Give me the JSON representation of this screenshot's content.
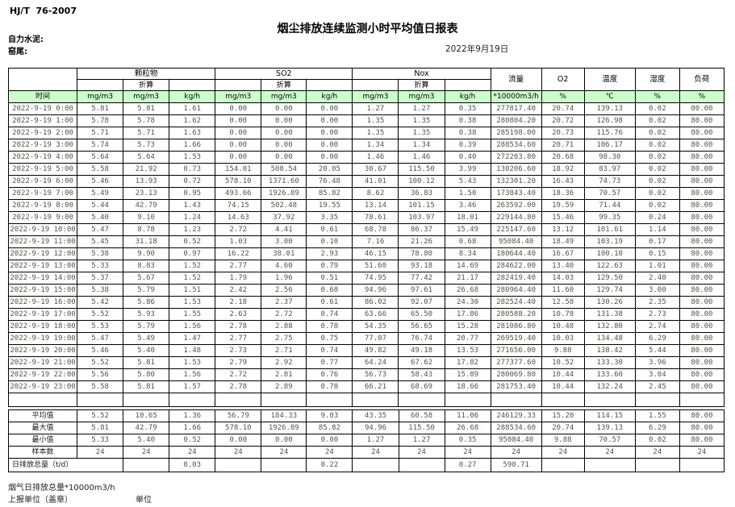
{
  "header": {
    "standard": "HJ/T  76-2007",
    "title": "烟尘排放连续监测小时平均值日报表",
    "company": "自力水泥:",
    "section": "窑尾:",
    "date": "2022年9月19日"
  },
  "colors": {
    "header_green": "#ccffcc",
    "border": "#000000",
    "data_text": "#57534c"
  },
  "table": {
    "groups": {
      "pm": "颗粒物",
      "so2": "SO2",
      "nox": "Nox",
      "conv": "折算"
    },
    "singles": {
      "flow": "流量",
      "o2": "O2",
      "temp": "温度",
      "humidity": "湿度",
      "load": "负荷"
    },
    "units": {
      "time": "时间",
      "mg": "mg/m3",
      "kgh": "kg/h",
      "flow": "*10000m3/h",
      "pct": "%",
      "temp": "℃"
    },
    "rows": [
      {
        "time": "2022-9-19 0:00",
        "values": [
          "5.81",
          "5.81",
          "1.61",
          "0.00",
          "0.00",
          "0.00",
          "1.27",
          "1.27",
          "0.35",
          "277817.40",
          "20.74",
          "139.13",
          "0.02",
          "80.00"
        ]
      },
      {
        "time": "2022-9-19 1:00",
        "values": [
          "5.78",
          "5.78",
          "1.62",
          "0.00",
          "0.00",
          "0.00",
          "1.35",
          "1.35",
          "0.38",
          "280804.20",
          "20.72",
          "126.98",
          "0.02",
          "80.00"
        ]
      },
      {
        "time": "2022-9-19 2:00",
        "values": [
          "5.71",
          "5.71",
          "1.63",
          "0.00",
          "0.00",
          "0.00",
          "1.35",
          "1.35",
          "0.38",
          "285198.00",
          "20.73",
          "115.76",
          "0.02",
          "80.00"
        ]
      },
      {
        "time": "2022-9-19 3:00",
        "values": [
          "5.74",
          "5.73",
          "1.66",
          "0.00",
          "0.00",
          "0.00",
          "1.34",
          "1.34",
          "0.39",
          "288534.60",
          "20.71",
          "106.17",
          "0.02",
          "80.00"
        ]
      },
      {
        "time": "2022-9-19 4:00",
        "values": [
          "5.64",
          "5.64",
          "1.53",
          "0.00",
          "0.00",
          "0.00",
          "1.46",
          "1.46",
          "0.40",
          "272203.80",
          "20.68",
          "98.30",
          "0.02",
          "80.00"
        ]
      },
      {
        "time": "2022-9-19 5:00",
        "values": [
          "5.58",
          "21.92",
          "0.73",
          "154.01",
          "508.54",
          "20.05",
          "30.67",
          "115.50",
          "3.99",
          "130206.60",
          "18.92",
          "83.97",
          "0.02",
          "80.00"
        ]
      },
      {
        "time": "2022-9-19 6:00",
        "values": [
          "5.46",
          "13.93",
          "0.72",
          "578.10",
          "1371.60",
          "76.48",
          "41.01",
          "100.12",
          "5.43",
          "132301.20",
          "16.43",
          "74.73",
          "0.02",
          "80.00"
        ]
      },
      {
        "time": "2022-9-19 7:00",
        "values": [
          "5.49",
          "23.13",
          "0.95",
          "493.66",
          "1926.89",
          "85.82",
          "8.62",
          "36.83",
          "1.50",
          "173843.40",
          "18.36",
          "70.57",
          "0.02",
          "80.00"
        ]
      },
      {
        "time": "2022-9-19 8:00",
        "values": [
          "5.44",
          "42.79",
          "1.43",
          "74.15",
          "502.48",
          "19.55",
          "13.14",
          "101.15",
          "3.46",
          "263592.00",
          "19.59",
          "71.44",
          "0.02",
          "80.00"
        ]
      },
      {
        "time": "2022-9-19 9:00",
        "values": [
          "5.40",
          "9.10",
          "1.24",
          "14.63",
          "37.92",
          "3.35",
          "78.61",
          "103.97",
          "18.01",
          "229144.80",
          "15.46",
          "99.35",
          "0.24",
          "80.00"
        ]
      },
      {
        "time": "2022-9-19 10:00",
        "values": [
          "5.47",
          "8.78",
          "1.23",
          "2.72",
          "4.41",
          "0.61",
          "68.78",
          "86.37",
          "15.49",
          "225147.60",
          "13.12",
          "101.61",
          "1.14",
          "80.00"
        ]
      },
      {
        "time": "2022-9-19 11:00",
        "values": [
          "5.45",
          "31.18",
          "0.52",
          "1.03",
          "3.00",
          "0.10",
          "7.16",
          "21.26",
          "0.68",
          "95084.40",
          "18.49",
          "103.19",
          "0.17",
          "80.00"
        ]
      },
      {
        "time": "2022-9-19 12:00",
        "values": [
          "5.38",
          "9.90",
          "0.97",
          "16.22",
          "38.01",
          "2.93",
          "46.15",
          "78.80",
          "8.34",
          "180644.40",
          "16.67",
          "100.10",
          "0.15",
          "80.00"
        ]
      },
      {
        "time": "2022-9-19 13:00",
        "values": [
          "5.33",
          "8.83",
          "1.52",
          "2.77",
          "4.60",
          "0.79",
          "51.60",
          "93.18",
          "14.69",
          "284622.00",
          "13.40",
          "122.63",
          "1.01",
          "80.00"
        ]
      },
      {
        "time": "2022-9-19 14:00",
        "values": [
          "5.37",
          "5.67",
          "1.52",
          "1.79",
          "1.96",
          "0.51",
          "74.95",
          "77.42",
          "21.17",
          "282419.40",
          "14.03",
          "129.50",
          "2.40",
          "80.00"
        ]
      },
      {
        "time": "2022-9-19 15:00",
        "values": [
          "5.38",
          "5.79",
          "1.51",
          "2.42",
          "2.56",
          "0.68",
          "94.96",
          "97.61",
          "26.68",
          "280964.40",
          "11.60",
          "129.74",
          "3.00",
          "80.00"
        ]
      },
      {
        "time": "2022-9-19 16:00",
        "values": [
          "5.42",
          "5.86",
          "1.53",
          "2.18",
          "2.37",
          "0.61",
          "86.02",
          "92.07",
          "24.30",
          "282524.40",
          "12.58",
          "130.26",
          "2.35",
          "80.00"
        ]
      },
      {
        "time": "2022-9-19 17:00",
        "values": [
          "5.52",
          "5.93",
          "1.55",
          "2.63",
          "2.72",
          "0.74",
          "63.66",
          "65.50",
          "17.86",
          "280588.20",
          "10.78",
          "131.38",
          "2.73",
          "80.00"
        ]
      },
      {
        "time": "2022-9-19 18:00",
        "values": [
          "5.53",
          "5.79",
          "1.56",
          "2.78",
          "2.88",
          "0.78",
          "54.35",
          "56.65",
          "15.28",
          "281086.80",
          "10.48",
          "132.80",
          "2.74",
          "80.00"
        ]
      },
      {
        "time": "2022-9-19 19:00",
        "values": [
          "5.47",
          "5.49",
          "1.47",
          "2.77",
          "2.75",
          "0.75",
          "77.07",
          "76.74",
          "20.77",
          "269519.40",
          "10.03",
          "134.48",
          "6.29",
          "80.00"
        ]
      },
      {
        "time": "2022-9-19 20:00",
        "values": [
          "5.46",
          "5.40",
          "1.48",
          "2.73",
          "2.71",
          "0.74",
          "49.82",
          "49.18",
          "13.53",
          "271656.00",
          "9.88",
          "138.42",
          "5.44",
          "80.00"
        ]
      },
      {
        "time": "2022-9-19 21:00",
        "values": [
          "5.52",
          "5.81",
          "1.53",
          "2.79",
          "2.92",
          "0.77",
          "64.24",
          "67.62",
          "17.82",
          "277377.60",
          "10.52",
          "133.30",
          "3.96",
          "80.00"
        ]
      },
      {
        "time": "2022-9-19 22:00",
        "values": [
          "5.56",
          "5.80",
          "1.56",
          "2.72",
          "2.81",
          "0.76",
          "56.73",
          "58.43",
          "15.89",
          "280069.80",
          "10.44",
          "133.60",
          "3.04",
          "80.00"
        ]
      },
      {
        "time": "2022-9-19 23:00",
        "values": [
          "5.58",
          "5.81",
          "1.57",
          "2.78",
          "2.89",
          "0.78",
          "66.21",
          "68.69",
          "18.66",
          "281753.40",
          "10.44",
          "132.24",
          "2.45",
          "80.00"
        ]
      }
    ],
    "summary": [
      {
        "label": "平均值",
        "values": [
          "5.52",
          "10.65",
          "1.36",
          "56.79",
          "184.33",
          "9.03",
          "43.35",
          "60.58",
          "11.06",
          "246129.33",
          "15.20",
          "114.15",
          "1.55",
          "80.00"
        ]
      },
      {
        "label": "最大值",
        "values": [
          "5.81",
          "42.79",
          "1.66",
          "578.10",
          "1926.89",
          "85.82",
          "94.96",
          "115.50",
          "26.68",
          "288534.60",
          "20.74",
          "139.13",
          "6.29",
          "80.00"
        ]
      },
      {
        "label": "最小值",
        "values": [
          "5.33",
          "5.40",
          "0.52",
          "0.00",
          "0.00",
          "0.00",
          "1.27",
          "1.27",
          "0.35",
          "95084.40",
          "9.88",
          "70.57",
          "0.02",
          "80.00"
        ]
      },
      {
        "label": "样本数",
        "values": [
          "24",
          "24",
          "24",
          "24",
          "24",
          "24",
          "24",
          "24",
          "24",
          "24",
          "24",
          "24",
          "24",
          "24"
        ]
      }
    ],
    "daily_total": {
      "label": "日排放总量（t/d）",
      "values": [
        "",
        "0.03",
        "",
        "",
        "0.22",
        "",
        "",
        "0.27",
        "590.71",
        "",
        "",
        "",
        ""
      ]
    }
  },
  "footer": {
    "flue_total": "烟气日排放总量*10000m3/h",
    "report_unit": "上报单位（盖章）",
    "unit": "单位"
  }
}
